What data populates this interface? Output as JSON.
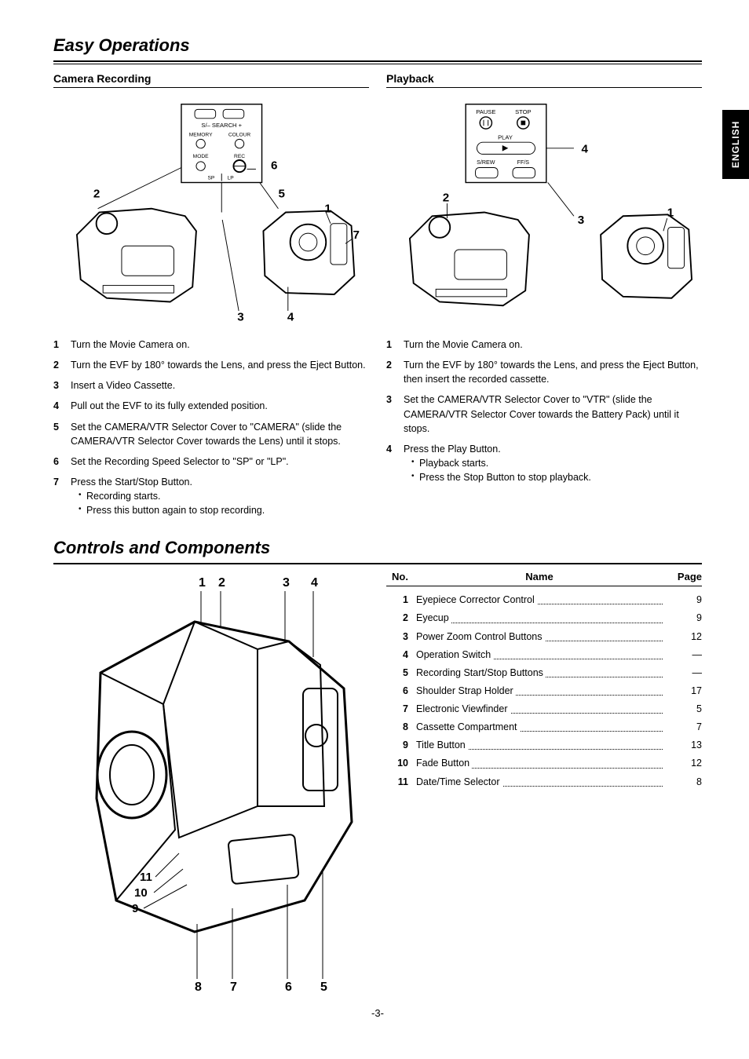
{
  "lang_tab": "ENGLISH",
  "title1": "Easy Operations",
  "title2": "Controls and Components",
  "page_num": "-3-",
  "camera_recording": {
    "heading": "Camera Recording",
    "panel_labels": [
      "S/– SEARCH +",
      "MEMORY",
      "COLOUR",
      "MODE",
      "REC",
      "SP",
      "LP"
    ],
    "callouts": [
      "1",
      "2",
      "3",
      "4",
      "5",
      "6",
      "7"
    ],
    "steps": [
      {
        "n": "1",
        "t": "Turn the Movie Camera on."
      },
      {
        "n": "2",
        "t": "Turn the EVF by 180° towards the Lens, and press the Eject Button."
      },
      {
        "n": "3",
        "t": "Insert a Video Cassette."
      },
      {
        "n": "4",
        "t": "Pull out the EVF to its fully extended position."
      },
      {
        "n": "5",
        "t": "Set the CAMERA/VTR Selector Cover to \"CAMERA\" (slide the CAMERA/VTR Selector Cover towards the Lens) until it stops."
      },
      {
        "n": "6",
        "t": "Set the Recording Speed Selector to \"SP\" or \"LP\"."
      },
      {
        "n": "7",
        "t": "Press the Start/Stop Button.",
        "sub": [
          "Recording starts.",
          "Press this button again to stop recording."
        ]
      }
    ]
  },
  "playback": {
    "heading": "Playback",
    "panel_labels": [
      "PAUSE",
      "STOP",
      "PLAY",
      "S/REW",
      "FF/S"
    ],
    "callouts": [
      "1",
      "2",
      "3",
      "4"
    ],
    "steps": [
      {
        "n": "1",
        "t": "Turn the Movie Camera on."
      },
      {
        "n": "2",
        "t": "Turn the EVF by 180° towards the Lens, and press the Eject Button, then insert the recorded cassette."
      },
      {
        "n": "3",
        "t": "Set the CAMERA/VTR Selector Cover to \"VTR\" (slide the CAMERA/VTR Selector Cover towards the Battery Pack) until it stops."
      },
      {
        "n": "4",
        "t": "Press the Play Button.",
        "sub": [
          "Playback starts.",
          "Press the Stop Button to stop playback."
        ]
      }
    ]
  },
  "controls": {
    "callouts_top": [
      "1",
      "2",
      "3",
      "4"
    ],
    "callouts_left": [
      "11",
      "10",
      "9"
    ],
    "callouts_bottom": [
      "8",
      "7",
      "6",
      "5"
    ],
    "table_headers": {
      "no": "No.",
      "name": "Name",
      "page": "Page"
    },
    "rows": [
      {
        "no": "1",
        "name": "Eyepiece Corrector Control",
        "page": "9"
      },
      {
        "no": "2",
        "name": "Eyecup",
        "page": "9"
      },
      {
        "no": "3",
        "name": "Power Zoom Control Buttons",
        "page": "12"
      },
      {
        "no": "4",
        "name": "Operation Switch",
        "page": "—"
      },
      {
        "no": "5",
        "name": "Recording Start/Stop Buttons",
        "page": "—"
      },
      {
        "no": "6",
        "name": "Shoulder Strap Holder",
        "page": "17"
      },
      {
        "no": "7",
        "name": "Electronic Viewfinder",
        "page": "5"
      },
      {
        "no": "8",
        "name": "Cassette Compartment",
        "page": "7"
      },
      {
        "no": "9",
        "name": "Title Button",
        "page": "13"
      },
      {
        "no": "10",
        "name": "Fade Button",
        "page": "12"
      },
      {
        "no": "11",
        "name": "Date/Time Selector",
        "page": "8"
      }
    ]
  }
}
